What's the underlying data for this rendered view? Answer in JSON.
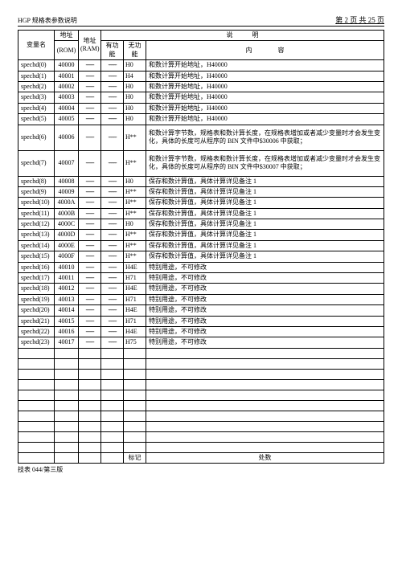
{
  "header": {
    "title": "HGP 规格表参数说明",
    "page": "第 2 页 共 25 页"
  },
  "cols": {
    "var": "变量名",
    "rom_top": "地址",
    "rom_sub": "(ROM)",
    "ram_top": "地址",
    "ram_sub": "(RAM)",
    "desc_top": "说　　　明",
    "fn1": "有功能",
    "fn2": "无功能",
    "content": "内　　　　容"
  },
  "dash": "------",
  "rows": [
    {
      "v": "spechd(0)",
      "r": "40000",
      "f2": "H0",
      "d": "和数计算开始地址，H40000"
    },
    {
      "v": "spechd(1)",
      "r": "40001",
      "f2": "H4",
      "d": "和数计算开始地址，H40000"
    },
    {
      "v": "spechd(2)",
      "r": "40002",
      "f2": "H0",
      "d": "和数计算开始地址，H40000"
    },
    {
      "v": "spechd(3)",
      "r": "40003",
      "f2": "H0",
      "d": "和数计算开始地址，H40000"
    },
    {
      "v": "spechd(4)",
      "r": "40004",
      "f2": "H0",
      "d": "和数计算开始地址，H40000"
    },
    {
      "v": "spechd(5)",
      "r": "40005",
      "f2": "H0",
      "d": "和数计算开始地址，H40000"
    },
    {
      "v": "spechd(6)",
      "r": "40006",
      "f2": "H**",
      "d": "和数计算字节数，规格表和数计算长度，在规格表增加或者减少变量时才会发生变化，具体的长度可从程序的 BIN 文件中$30006 中获取；",
      "tall": true
    },
    {
      "v": "spechd(7)",
      "r": "40007",
      "f2": "H**",
      "d": "和数计算字节数，规格表和数计算长度，在规格表增加或者减少变量时才会发生变化，具体的长度可从程序的 BIN 文件中$30007 中获取；",
      "tall": true
    },
    {
      "v": "spechd(8)",
      "r": "40008",
      "f2": "H0",
      "d": "保存和数计算值，具体计算详见备注 1"
    },
    {
      "v": "spechd(9)",
      "r": "40009",
      "f2": "H**",
      "d": "保存和数计算值，具体计算详见备注 1"
    },
    {
      "v": "spechd(10)",
      "r": "4000A",
      "f2": "H**",
      "d": "保存和数计算值，具体计算详见备注 1"
    },
    {
      "v": "spechd(11)",
      "r": "4000B",
      "f2": "H**",
      "d": "保存和数计算值，具体计算详见备注 1"
    },
    {
      "v": "spechd(12)",
      "r": "4000C",
      "f2": "H0",
      "d": "保存和数计算值，具体计算详见备注 1"
    },
    {
      "v": "spechd(13)",
      "r": "4000D",
      "f2": "H**",
      "d": "保存和数计算值，具体计算详见备注 1"
    },
    {
      "v": "spechd(14)",
      "r": "4000E",
      "f2": "H**",
      "d": "保存和数计算值，具体计算详见备注 1"
    },
    {
      "v": "spechd(15)",
      "r": "4000F",
      "f2": "H**",
      "d": "保存和数计算值，具体计算详见备注 1"
    },
    {
      "v": "spechd(16)",
      "r": "40010",
      "f2": "H4E",
      "d": "特别用途，不可修改"
    },
    {
      "v": "spechd(17)",
      "r": "40011",
      "f2": "H71",
      "d": "特别用途，不可修改"
    },
    {
      "v": "spechd(18)",
      "r": "40012",
      "f2": "H4E",
      "d": "特别用途，不可修改"
    },
    {
      "v": "spechd(19)",
      "r": "40013",
      "f2": "H71",
      "d": "特别用途，不可修改"
    },
    {
      "v": "spechd(20)",
      "r": "40014",
      "f2": "H4E",
      "d": "特别用途，不可修改"
    },
    {
      "v": "spechd(21)",
      "r": "40015",
      "f2": "H71",
      "d": "特别用途，不可修改"
    },
    {
      "v": "spechd(22)",
      "r": "40016",
      "f2": "H4E",
      "d": "特别用途，不可修改"
    },
    {
      "v": "spechd(23)",
      "r": "40017",
      "f2": "H75",
      "d": "特别用途，不可修改"
    }
  ],
  "blank_rows": 10,
  "footer_row": {
    "mark": "标记",
    "qty": "处数"
  },
  "footnote": "技表 044/第三版"
}
